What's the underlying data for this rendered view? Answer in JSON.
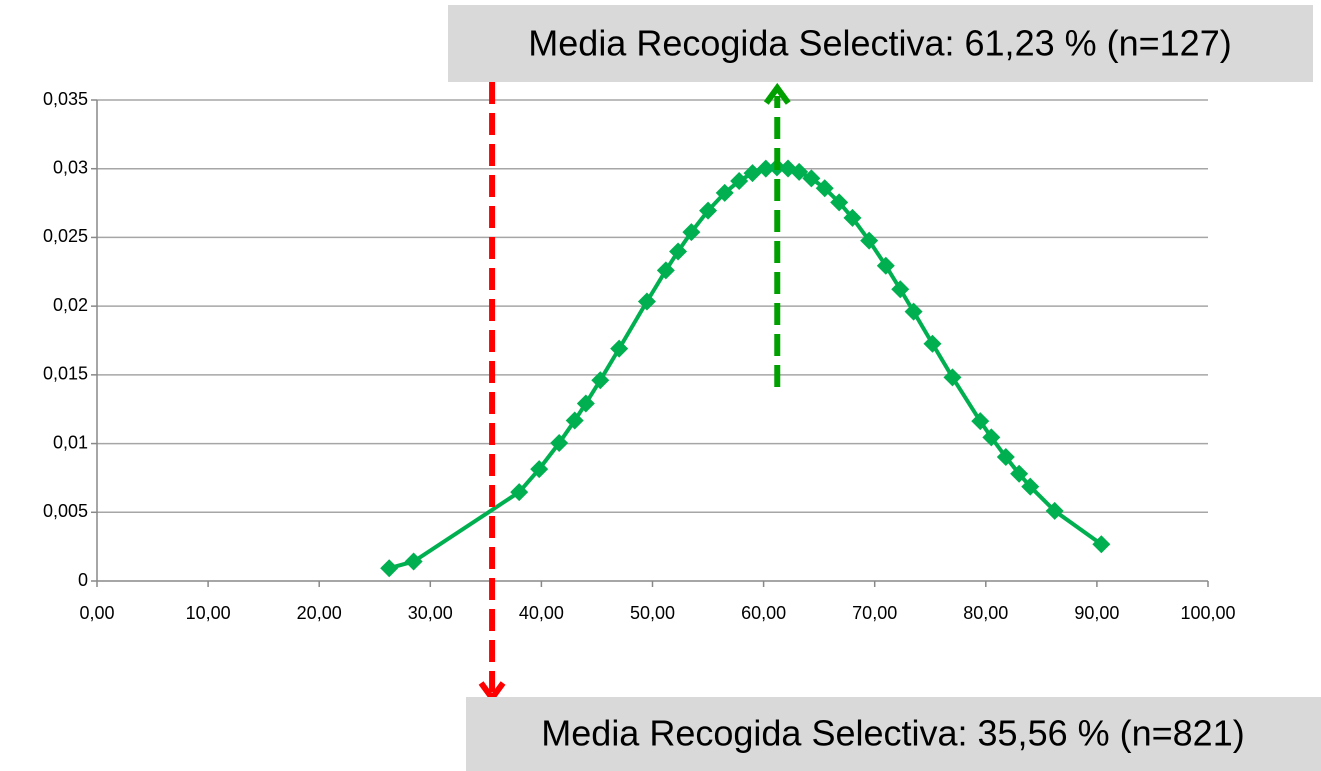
{
  "chart_data": {
    "type": "scatter",
    "x": [
      26.3,
      28.5,
      38.0,
      39.8,
      41.6,
      43.0,
      44.0,
      45.3,
      47.0,
      49.5,
      51.2,
      52.3,
      53.5,
      55.0,
      56.5,
      57.8,
      59.0,
      60.2,
      61.2,
      62.2,
      63.2,
      64.3,
      65.5,
      66.8,
      68.0,
      69.5,
      71.0,
      72.3,
      73.5,
      75.2,
      77.0,
      79.5,
      80.5,
      81.8,
      83.0,
      84.0,
      86.2,
      90.4
    ],
    "series": [
      {
        "color": "#00b050",
        "values": [
          0.00093,
          0.00142,
          0.00647,
          0.00814,
          0.01004,
          0.01168,
          0.01292,
          0.01461,
          0.01691,
          0.02034,
          0.0226,
          0.02398,
          0.02539,
          0.02695,
          0.02824,
          0.02911,
          0.02968,
          0.03001,
          0.0301,
          0.03002,
          0.02977,
          0.0293,
          0.02858,
          0.02755,
          0.02642,
          0.02477,
          0.02294,
          0.02123,
          0.0196,
          0.01726,
          0.01482,
          0.01163,
          0.01045,
          0.00902,
          0.0078,
          0.00687,
          0.0051,
          0.00267
        ]
      }
    ],
    "xlim": [
      0,
      100
    ],
    "xticks": [
      {
        "value": 0,
        "label": "0,00"
      },
      {
        "value": 10,
        "label": "10,00"
      },
      {
        "value": 20,
        "label": "20,00"
      },
      {
        "value": 30,
        "label": "30,00"
      },
      {
        "value": 40,
        "label": "40,00"
      },
      {
        "value": 50,
        "label": "50,00"
      },
      {
        "value": 60,
        "label": "60,00"
      },
      {
        "value": 70,
        "label": "70,00"
      },
      {
        "value": 80,
        "label": "80,00"
      },
      {
        "value": 90,
        "label": "90,00"
      },
      {
        "value": 100,
        "label": "100,00"
      }
    ],
    "ylim": [
      0,
      0.035
    ],
    "yticks": [
      0,
      {
        "value": 0.005,
        "label": "0,005"
      },
      {
        "value": 0.01,
        "label": "0,01"
      },
      {
        "value": 0.015,
        "label": "0,015"
      },
      {
        "value": 0.02,
        "label": "0,02"
      },
      {
        "value": 0.025,
        "label": "0,025"
      },
      {
        "value": 0.03,
        "label": "0,03"
      },
      {
        "value": 0.035,
        "label": "0,035"
      }
    ],
    "grid": true,
    "annotations": [
      {
        "text": "Media Recogida Selectiva: 61,23 % (n=127)",
        "x": 61.23,
        "color": "#00a000"
      },
      {
        "text": "Media Recogida Selectiva: 35,56 % (n=821)",
        "x": 35.56,
        "color": "#ff0000"
      }
    ]
  }
}
